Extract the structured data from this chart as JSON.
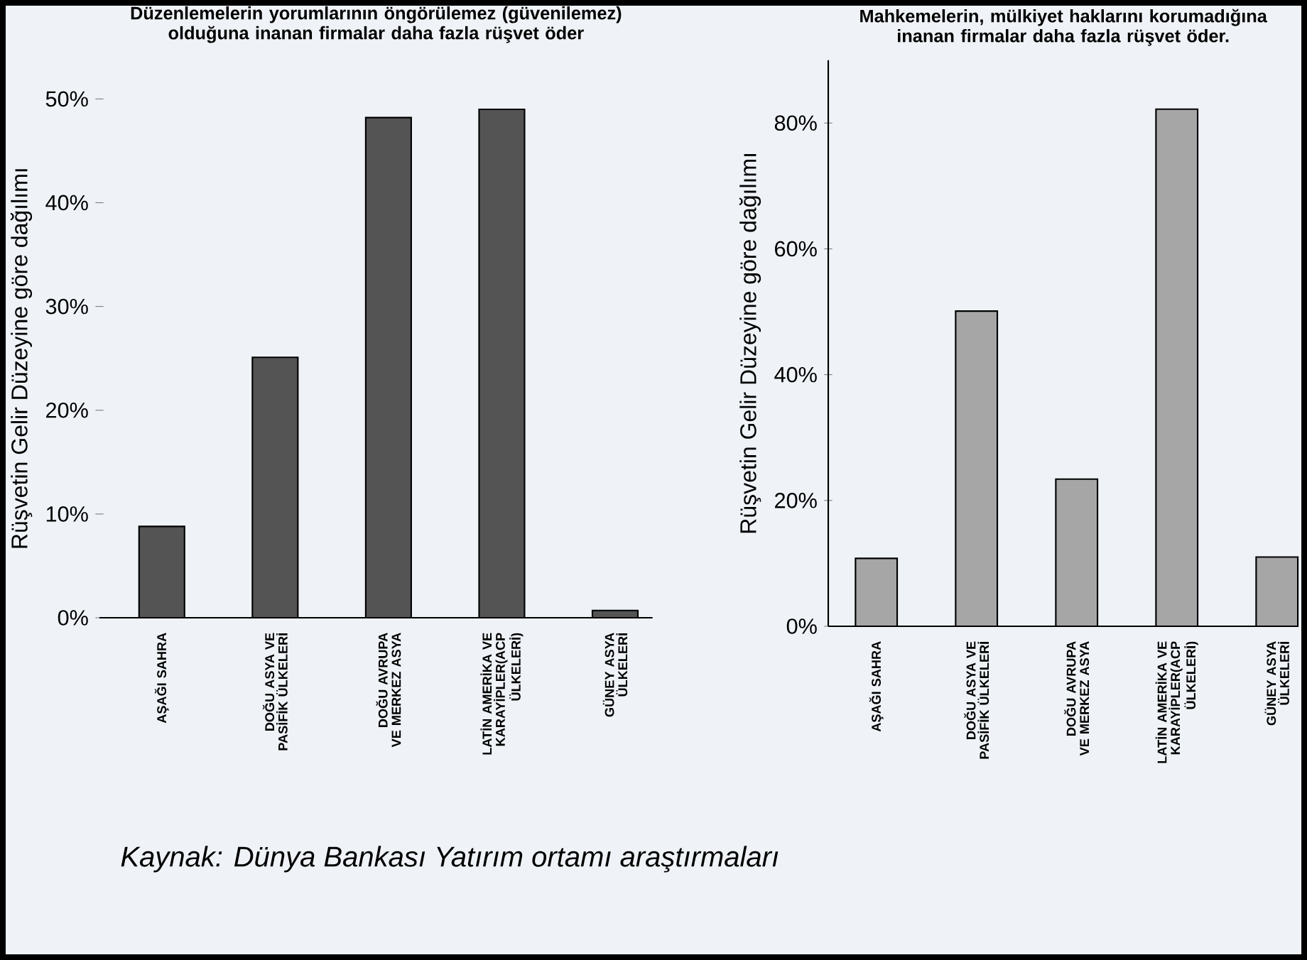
{
  "chart_data": [
    {
      "type": "bar",
      "title": "Düzenlemelerin yorumlarının öngörülemez (güvenilemez) olduğuna inanan firmalar daha fazla rüşvet öder",
      "ylabel": "Rüşvetin Gelir Düzeyine göre dağılımı",
      "categories": [
        "AŞAĞI SAHRA",
        "DOĞU ASYA VE PASİFİK ÜLKELERİ",
        "DOĞU AVRUPA VE MERKEZ ASYA",
        "LATİN AMERİKA VE KARAYİPLER(ACP ÜLKELERİ)",
        "GÜNEY ASYA ÜLKELERİ"
      ],
      "values": [
        8.8,
        25.1,
        48.2,
        49.0,
        0.7
      ],
      "color": "#545454",
      "ylim": [
        0,
        50
      ],
      "yticks": [
        {
          "value": 0,
          "label": "0%"
        },
        {
          "value": 10,
          "label": "10%"
        },
        {
          "value": 20,
          "label": "20%"
        },
        {
          "value": 30,
          "label": "30%"
        },
        {
          "value": 40,
          "label": "40%"
        },
        {
          "value": 50,
          "label": "50%"
        }
      ],
      "annotations": [
        "Kaynak: Dünya Bankası Yatırım ortamı araştırmaları"
      ]
    },
    {
      "type": "bar",
      "title": "Mahkemelerin, mülkiyet haklarını korumadığına inanan firmalar daha fazla rüşvet öder.",
      "ylabel": "Rüşvetin Gelir Düzeyine göre dağılımı",
      "categories": [
        "AŞAĞI SAHRA",
        "DOĞU ASYA VE PASİFİK ÜLKELERİ",
        "DOĞU AVRUPA VE MERKEZ ASYA",
        "LATİN AMERİKA VE KARAYİPLER(ACP ÜLKELERİ)",
        "GÜNEY ASYA ÜLKELERİ"
      ],
      "values": [
        10.8,
        50.1,
        23.4,
        82.2,
        11.0
      ],
      "color": "#a6a6a6",
      "ylim": [
        0,
        90
      ],
      "yticks": [
        {
          "value": 0,
          "label": "0%"
        },
        {
          "value": 20,
          "label": "20%"
        },
        {
          "value": 40,
          "label": "40%"
        },
        {
          "value": 60,
          "label": "60%"
        },
        {
          "value": 80,
          "label": "80%"
        }
      ]
    }
  ]
}
